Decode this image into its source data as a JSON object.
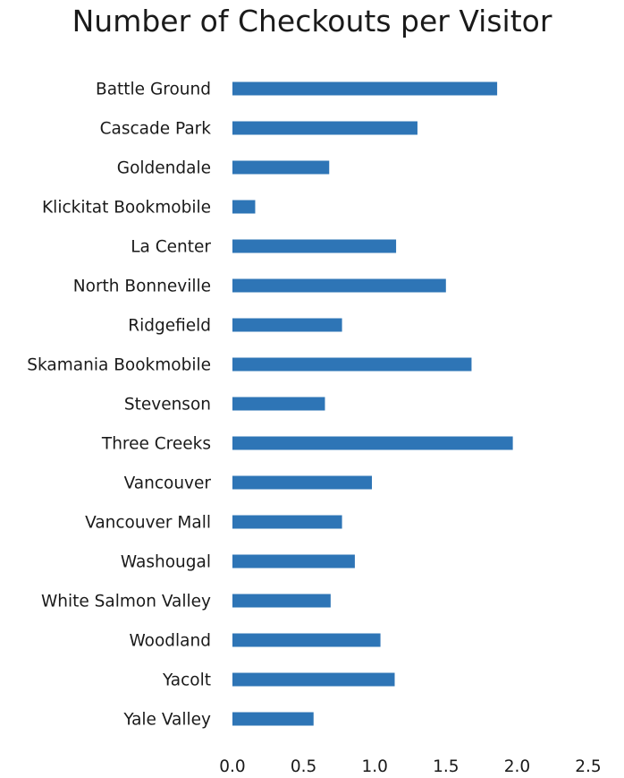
{
  "chart_data": {
    "type": "bar",
    "orientation": "horizontal",
    "title": "Number of Checkouts per Visitor",
    "xlabel": "",
    "ylabel": "",
    "xlim": [
      0,
      2.5
    ],
    "xticks": [
      "0.0",
      "0.5",
      "1.0",
      "1.5",
      "2.0",
      "2.5"
    ],
    "grid": false,
    "bar_color": "#2e75b6",
    "categories": [
      "Battle Ground",
      "Cascade Park",
      "Goldendale",
      "Klickitat Bookmobile",
      "La Center",
      "North Bonneville",
      "Ridgefield",
      "Skamania Bookmobile",
      "Stevenson",
      "Three Creeks",
      "Vancouver",
      "Vancouver Mall",
      "Washougal",
      "White Salmon Valley",
      "Woodland",
      "Yacolt",
      "Yale Valley"
    ],
    "values": [
      1.86,
      1.3,
      0.68,
      0.16,
      1.15,
      1.5,
      0.77,
      1.68,
      0.65,
      1.97,
      0.98,
      0.77,
      0.86,
      0.69,
      1.04,
      1.14,
      0.57
    ]
  }
}
